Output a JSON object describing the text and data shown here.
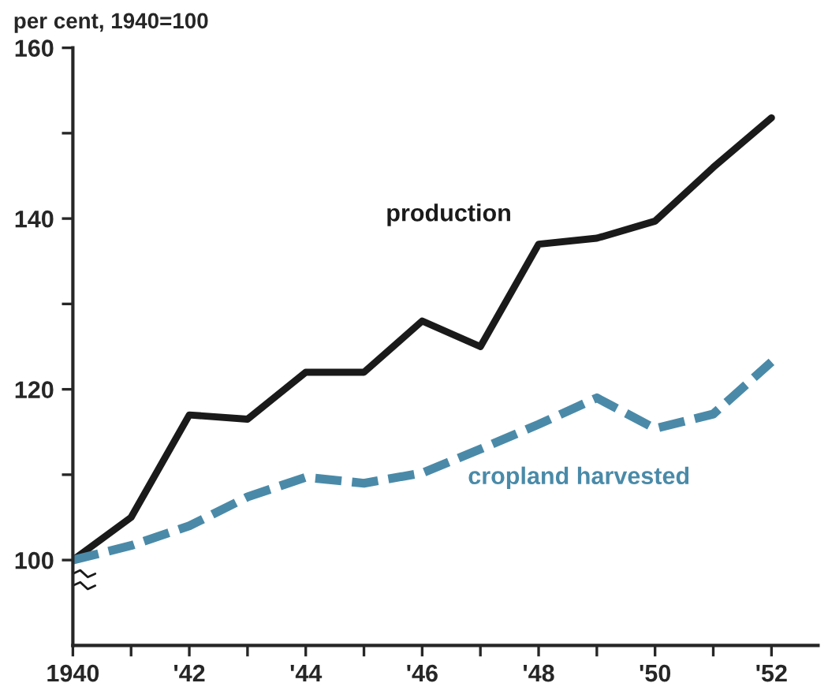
{
  "chart_data": {
    "type": "line",
    "ylabel": "per cent, 1940=100",
    "x": [
      1940,
      1941,
      1942,
      1943,
      1944,
      1945,
      1946,
      1947,
      1948,
      1949,
      1950,
      1951,
      1952
    ],
    "series": [
      {
        "name": "production",
        "color": "#1a1a1a",
        "line_style": "solid",
        "values": [
          100,
          105,
          117,
          116.5,
          122,
          122,
          128,
          125,
          137,
          137.7,
          139.7,
          146,
          151.8
        ]
      },
      {
        "name": "cropland harvested",
        "color": "#4a8aa8",
        "line_style": "dashed",
        "values": [
          100,
          101.7,
          104,
          107.4,
          109.7,
          109,
          110.2,
          113,
          115.9,
          119,
          115.4,
          117.1,
          123.2
        ]
      }
    ],
    "xlim": [
      1940,
      1952.8
    ],
    "xticks": [
      {
        "value": 1940,
        "label": "1940"
      },
      {
        "value": 1941,
        "label": null
      },
      {
        "value": 1942,
        "label": "'42"
      },
      {
        "value": 1943,
        "label": null
      },
      {
        "value": 1944,
        "label": "'44"
      },
      {
        "value": 1945,
        "label": null
      },
      {
        "value": 1946,
        "label": "'46"
      },
      {
        "value": 1947,
        "label": null
      },
      {
        "value": 1948,
        "label": "'48"
      },
      {
        "value": 1949,
        "label": null
      },
      {
        "value": 1950,
        "label": "'50"
      },
      {
        "value": 1951,
        "label": null
      },
      {
        "value": 1952,
        "label": "'52"
      }
    ],
    "ylim": [
      90,
      160
    ],
    "yticks": [
      {
        "value": 100,
        "label": "100"
      },
      {
        "value": 110,
        "label": null
      },
      {
        "value": 120,
        "label": "120"
      },
      {
        "value": 130,
        "label": null
      },
      {
        "value": 140,
        "label": "140"
      },
      {
        "value": 150,
        "label": null
      },
      {
        "value": 160,
        "label": "160"
      }
    ],
    "grid": false,
    "legend": false,
    "marker": "none"
  }
}
